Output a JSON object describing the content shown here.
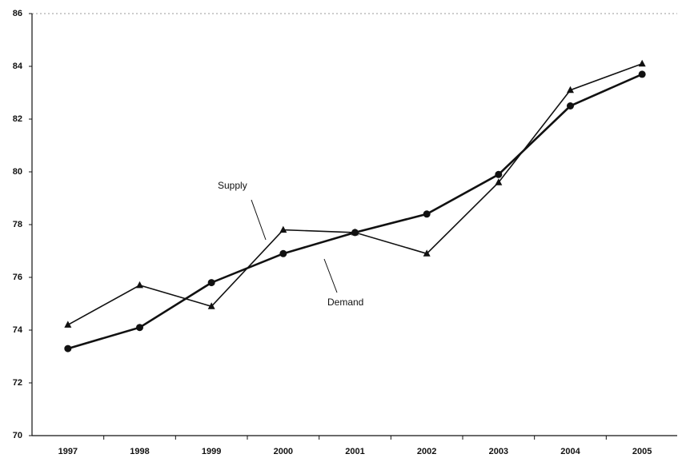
{
  "chart_data": {
    "type": "line",
    "categories": [
      "1997",
      "1998",
      "1999",
      "2000",
      "2001",
      "2002",
      "2003",
      "2004",
      "2005"
    ],
    "series": [
      {
        "name": "Supply",
        "color": "#111111",
        "marker": "triangle",
        "values": [
          74.2,
          75.7,
          74.9,
          77.8,
          77.7,
          76.9,
          79.6,
          83.1,
          84.1
        ]
      },
      {
        "name": "Demand",
        "color": "#111111",
        "marker": "circle",
        "values": [
          73.3,
          74.1,
          75.8,
          76.9,
          77.7,
          78.4,
          79.9,
          82.5,
          83.7
        ]
      }
    ],
    "ylim": [
      70,
      86
    ],
    "yticks": [
      70,
      72,
      74,
      76,
      78,
      80,
      82,
      84,
      86
    ],
    "grid": false
  }
}
